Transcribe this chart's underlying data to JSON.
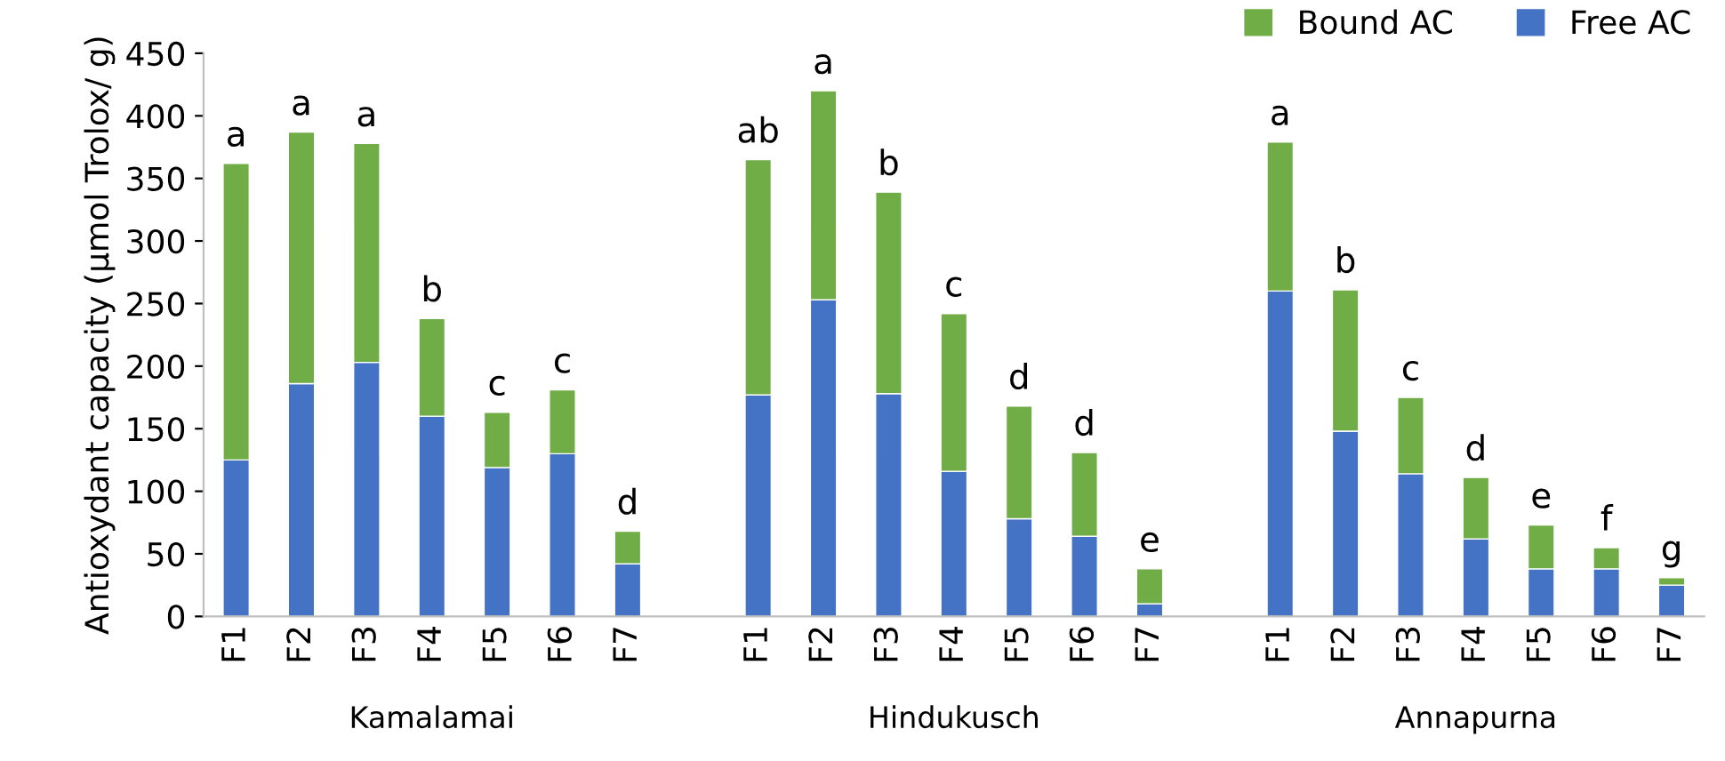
{
  "chart_data": {
    "type": "bar",
    "stacked": true,
    "ylabel": "Antioxydant capacity (µmol Trolox/ g)",
    "categories": [
      "F1",
      "F2",
      "F3",
      "F4",
      "F5",
      "F6",
      "F7",
      null,
      "F1",
      "F2",
      "F3",
      "F4",
      "F5",
      "F6",
      "F7",
      null,
      "F1",
      "F2",
      "F3",
      "F4",
      "F5",
      "F6",
      "F7"
    ],
    "annotations": [
      "Kamalamai",
      "Hindukusch",
      "Annapurna"
    ],
    "series": [
      {
        "name": "Free AC",
        "color": "#4472c4",
        "values": [
          125,
          186,
          203,
          160,
          119,
          130,
          42,
          null,
          177,
          253,
          178,
          116,
          78,
          64,
          10,
          null,
          260,
          148,
          114,
          62,
          38,
          38,
          25
        ]
      },
      {
        "name": "Bound AC",
        "color": "#70ad47",
        "values": [
          237,
          201,
          175,
          78,
          44,
          51,
          26,
          null,
          188,
          167,
          161,
          126,
          90,
          67,
          28,
          null,
          119,
          113,
          61,
          49,
          35,
          17,
          6
        ],
        "value_labels": [
          "a",
          "a",
          "a",
          "b",
          "c",
          "c",
          "d",
          null,
          "ab",
          "a",
          "b",
          "c",
          "d",
          "d",
          "e",
          null,
          "a",
          "b",
          "c",
          "d",
          "e",
          "f",
          "g"
        ]
      }
    ],
    "ylim": [
      0,
      450
    ],
    "yticks": [
      0,
      50,
      100,
      150,
      200,
      250,
      300,
      350,
      400,
      450
    ],
    "grid": false,
    "legend": "top right"
  }
}
